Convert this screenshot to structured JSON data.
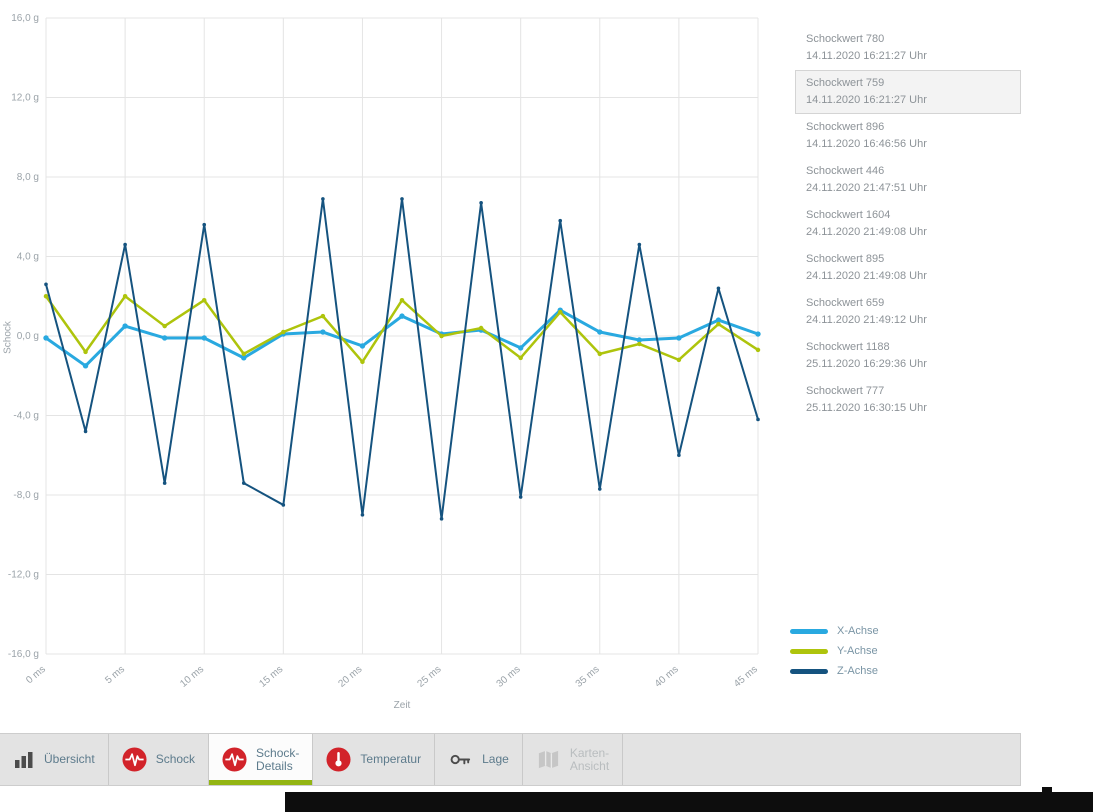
{
  "chart_data": {
    "type": "line",
    "title": "",
    "xlabel": "Zeit",
    "ylabel": "Schock",
    "xlim": [
      0,
      45
    ],
    "ylim": [
      -16,
      16
    ],
    "grid": true,
    "legend_position": "right-bottom",
    "x": [
      0,
      2.5,
      5,
      7.5,
      10,
      12.5,
      15,
      17.5,
      20,
      22.5,
      25,
      27.5,
      30,
      32.5,
      35,
      37.5,
      40,
      42.5,
      45
    ],
    "series": [
      {
        "name": "X-Achse",
        "color": "#29a9e0",
        "values": [
          -0.1,
          -1.5,
          0.5,
          -0.1,
          -0.1,
          -1.1,
          0.1,
          0.2,
          -0.5,
          1.0,
          0.1,
          0.3,
          -0.6,
          1.3,
          0.2,
          -0.2,
          -0.1,
          0.8,
          0.1
        ]
      },
      {
        "name": "Y-Achse",
        "color": "#aec40c",
        "values": [
          2.0,
          -0.8,
          2.0,
          0.5,
          1.8,
          -0.9,
          0.2,
          1.0,
          -1.3,
          1.8,
          0.0,
          0.4,
          -1.1,
          1.2,
          -0.9,
          -0.4,
          -1.2,
          0.6,
          -0.7
        ]
      },
      {
        "name": "Z-Achse",
        "color": "#15537f",
        "values": [
          2.6,
          -4.8,
          4.6,
          -7.4,
          5.6,
          -7.4,
          -8.5,
          6.9,
          -9.0,
          6.9,
          -9.2,
          6.7,
          -8.1,
          5.8,
          -7.7,
          4.6,
          -6.0,
          2.4,
          -4.2
        ]
      }
    ],
    "yticks": [
      {
        "value": 16,
        "label": "16,0 g"
      },
      {
        "value": 12,
        "label": "12,0 g"
      },
      {
        "value": 8,
        "label": "8,0 g"
      },
      {
        "value": 4,
        "label": "4,0 g"
      },
      {
        "value": 0,
        "label": "0,0 g"
      },
      {
        "value": -4,
        "label": "-4,0 g"
      },
      {
        "value": -8,
        "label": "-8,0 g"
      },
      {
        "value": -12,
        "label": "-12,0 g"
      },
      {
        "value": -16,
        "label": "-16,0 g"
      }
    ],
    "xticks": [
      {
        "value": 0,
        "label": "0 ms"
      },
      {
        "value": 5,
        "label": "5 ms"
      },
      {
        "value": 10,
        "label": "10 ms"
      },
      {
        "value": 15,
        "label": "15 ms"
      },
      {
        "value": 20,
        "label": "20 ms"
      },
      {
        "value": 25,
        "label": "25 ms"
      },
      {
        "value": 30,
        "label": "30 ms"
      },
      {
        "value": 35,
        "label": "35 ms"
      },
      {
        "value": 40,
        "label": "40 ms"
      },
      {
        "value": 45,
        "label": "45 ms"
      }
    ]
  },
  "event_list": {
    "items": [
      {
        "title": "Schockwert 780",
        "timestamp": "14.11.2020 16:21:27 Uhr",
        "selected": false
      },
      {
        "title": "Schockwert 759",
        "timestamp": "14.11.2020 16:21:27 Uhr",
        "selected": true
      },
      {
        "title": "Schockwert 896",
        "timestamp": "14.11.2020 16:46:56 Uhr",
        "selected": false
      },
      {
        "title": "Schockwert 446",
        "timestamp": "24.11.2020 21:47:51 Uhr",
        "selected": false
      },
      {
        "title": "Schockwert 1604",
        "timestamp": "24.11.2020 21:49:08 Uhr",
        "selected": false
      },
      {
        "title": "Schockwert 895",
        "timestamp": "24.11.2020 21:49:08 Uhr",
        "selected": false
      },
      {
        "title": "Schockwert 659",
        "timestamp": "24.11.2020 21:49:12 Uhr",
        "selected": false
      },
      {
        "title": "Schockwert 1188",
        "timestamp": "25.11.2020 16:29:36 Uhr",
        "selected": false
      },
      {
        "title": "Schockwert 777",
        "timestamp": "25.11.2020 16:30:15 Uhr",
        "selected": false
      }
    ]
  },
  "legend": {
    "entries": [
      {
        "label": "X-Achse",
        "color": "#29a9e0"
      },
      {
        "label": "Y-Achse",
        "color": "#aec40c"
      },
      {
        "label": "Z-Achse",
        "color": "#15537f"
      }
    ]
  },
  "tabs": {
    "items": [
      {
        "lines": [
          "Übersicht"
        ],
        "icon": "bar-chart-icon",
        "active": false,
        "disabled": false
      },
      {
        "lines": [
          "Schock"
        ],
        "icon": "shock-pulse-icon",
        "active": false,
        "disabled": false
      },
      {
        "lines": [
          "Schock-",
          "Details"
        ],
        "icon": "shock-pulse-icon",
        "active": true,
        "disabled": false
      },
      {
        "lines": [
          "Temperatur"
        ],
        "icon": "thermometer-icon",
        "active": false,
        "disabled": false
      },
      {
        "lines": [
          "Lage"
        ],
        "icon": "key-icon",
        "active": false,
        "disabled": false
      },
      {
        "lines": [
          "Karten-",
          "Ansicht"
        ],
        "icon": "map-icon",
        "active": false,
        "disabled": true
      }
    ]
  },
  "colors": {
    "accent_green": "#93b513",
    "icon_red": "#d2232a",
    "tab_text": "#5d7b8c",
    "grid": "#e4e4e4",
    "tick_text": "#9ba3a9"
  }
}
